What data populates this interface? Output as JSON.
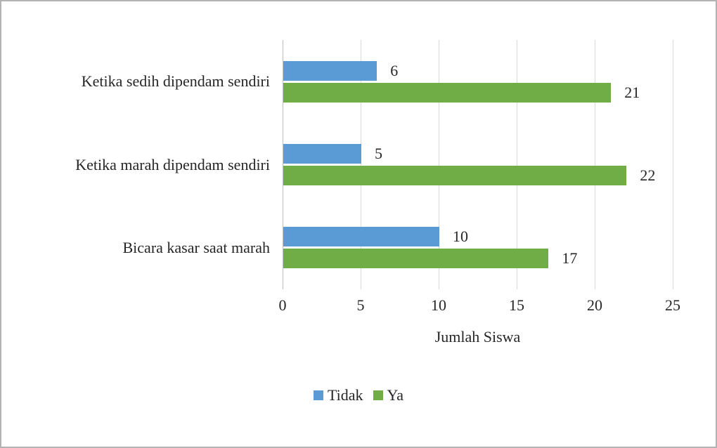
{
  "chart_data": {
    "type": "bar",
    "orientation": "horizontal",
    "title": "",
    "categories": [
      "Ketika sedih dipendam sendiri",
      "Ketika marah dipendam sendiri",
      "Bicara kasar saat marah"
    ],
    "series": [
      {
        "name": "Tidak",
        "color": "#5B9BD5",
        "values": [
          6,
          5,
          10
        ]
      },
      {
        "name": "Ya",
        "color": "#70AD47",
        "values": [
          21,
          22,
          17
        ]
      }
    ],
    "xlabel": "Jumlah Siswa",
    "ylabel": "",
    "xlim": [
      0,
      25
    ],
    "xtick_step": 5,
    "grid": "vertical",
    "legend_position": "bottom",
    "value_labels": true
  }
}
